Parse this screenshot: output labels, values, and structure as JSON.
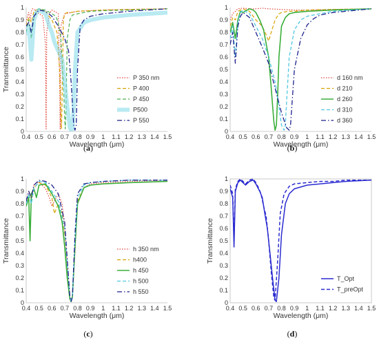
{
  "chart_data": [
    {
      "type": "line",
      "panel_label": "a",
      "xlabel": "Wavelength (μm)",
      "ylabel": "Transmittance",
      "xlim": [
        0.4,
        1.5
      ],
      "ylim": [
        0,
        1
      ],
      "xticks": [
        "0.4",
        "0.5",
        "0.6",
        "0.7",
        "0.8",
        "0.9",
        "1",
        "1.1",
        "1.2",
        "1.3",
        "1.4",
        "1.5"
      ],
      "yticks": [
        "0",
        "0.1",
        "0.2",
        "0.3",
        "0.4",
        "0.5",
        "0.6",
        "0.7",
        "0.8",
        "0.9",
        "1"
      ],
      "legend_position": "bottom-right",
      "series": [
        {
          "name": "P 350 nm",
          "color": "#e0443a",
          "style": "dotted",
          "width": 1.2,
          "x": [
            0.4,
            0.41,
            0.42,
            0.43,
            0.44,
            0.45,
            0.47,
            0.5,
            0.53,
            0.55,
            0.555,
            0.56,
            0.58,
            0.6,
            0.62,
            0.65,
            0.66,
            0.665,
            0.67,
            0.7,
            0.8,
            0.9,
            1.0,
            1.2,
            1.5
          ],
          "y": [
            0.88,
            0.93,
            0.96,
            0.9,
            0.97,
            0.99,
            0.98,
            0.95,
            0.93,
            0.7,
            0.02,
            0.8,
            0.95,
            0.98,
            0.97,
            0.95,
            0.4,
            0.02,
            0.85,
            0.95,
            0.97,
            0.975,
            0.98,
            0.985,
            0.99
          ]
        },
        {
          "name": "P 400",
          "color": "#d6a100",
          "style": "dashed",
          "width": 1.2,
          "x": [
            0.4,
            0.42,
            0.44,
            0.46,
            0.5,
            0.55,
            0.6,
            0.64,
            0.66,
            0.67,
            0.675,
            0.68,
            0.69,
            0.7,
            0.72,
            0.75,
            0.8,
            0.9,
            1.0,
            1.2,
            1.5
          ],
          "y": [
            0.85,
            0.92,
            0.88,
            0.97,
            0.99,
            0.97,
            0.9,
            0.8,
            0.5,
            0.15,
            0.02,
            0.3,
            0.9,
            0.95,
            0.96,
            0.96,
            0.97,
            0.975,
            0.98,
            0.985,
            0.99
          ]
        },
        {
          "name": "P 450",
          "color": "#4caf50",
          "style": "dashed",
          "width": 1.2,
          "x": [
            0.4,
            0.42,
            0.44,
            0.46,
            0.48,
            0.5,
            0.55,
            0.6,
            0.63,
            0.65,
            0.67,
            0.69,
            0.7,
            0.705,
            0.71,
            0.72,
            0.74,
            0.76,
            0.8,
            0.85,
            0.9,
            1.0,
            1.2,
            1.5
          ],
          "y": [
            0.8,
            0.9,
            0.75,
            0.92,
            0.97,
            0.99,
            0.98,
            0.95,
            0.93,
            0.88,
            0.75,
            0.4,
            0.1,
            0.02,
            0.2,
            0.75,
            0.9,
            0.94,
            0.95,
            0.96,
            0.97,
            0.975,
            0.98,
            0.99
          ]
        },
        {
          "name": "P500",
          "color": "#7fd8e8",
          "style": "band",
          "width": 6,
          "x": [
            0.4,
            0.42,
            0.44,
            0.46,
            0.48,
            0.5,
            0.55,
            0.58,
            0.6,
            0.62,
            0.65,
            0.68,
            0.7,
            0.72,
            0.74,
            0.75,
            0.76,
            0.77,
            0.78,
            0.8,
            0.85,
            0.9,
            1.0,
            1.2,
            1.5
          ],
          "y": [
            0.78,
            0.85,
            0.58,
            0.9,
            0.96,
            0.98,
            0.95,
            0.85,
            0.8,
            0.72,
            0.65,
            0.58,
            0.4,
            0.2,
            0.03,
            0.01,
            0.02,
            0.2,
            0.5,
            0.8,
            0.88,
            0.9,
            0.92,
            0.94,
            0.96
          ]
        },
        {
          "name": "P 550",
          "color": "#1b1f8a",
          "style": "dashdot",
          "width": 1.3,
          "x": [
            0.4,
            0.42,
            0.44,
            0.46,
            0.5,
            0.55,
            0.6,
            0.65,
            0.7,
            0.73,
            0.75,
            0.77,
            0.78,
            0.79,
            0.8,
            0.82,
            0.85,
            0.9,
            1.0,
            1.2,
            1.5
          ],
          "y": [
            0.85,
            0.88,
            0.8,
            0.93,
            0.98,
            0.97,
            0.93,
            0.85,
            0.75,
            0.65,
            0.4,
            0.05,
            0.01,
            0.05,
            0.5,
            0.85,
            0.9,
            0.93,
            0.95,
            0.97,
            0.99
          ]
        }
      ]
    },
    {
      "type": "line",
      "panel_label": "b",
      "xlabel": "Wavelength (μm)",
      "ylabel": "",
      "xlim": [
        0.4,
        1.5
      ],
      "ylim": [
        0,
        1
      ],
      "xticks": [
        "0.4",
        "0.5",
        "0.6",
        "0.7",
        "0.8",
        "0.9",
        "1",
        "1.1",
        "1.2",
        "1.3",
        "1.4",
        "1.5"
      ],
      "yticks": [
        "0",
        "0.1",
        "0.2",
        "0.3",
        "0.4",
        "0.5",
        "0.6",
        "0.7",
        "0.8",
        "0.9",
        "1"
      ],
      "legend_position": "bottom-right",
      "series": [
        {
          "name": "d 160 nm",
          "color": "#e0443a",
          "style": "dotted",
          "width": 1.2,
          "x": [
            0.4,
            0.42,
            0.44,
            0.46,
            0.5,
            0.55,
            0.6,
            0.65,
            0.7,
            0.8,
            0.9,
            1.0,
            1.2,
            1.5
          ],
          "y": [
            0.9,
            0.95,
            0.97,
            0.99,
            0.995,
            0.99,
            0.99,
            0.995,
            0.99,
            0.985,
            0.98,
            0.98,
            0.985,
            0.99
          ]
        },
        {
          "name": "d 210",
          "color": "#d6a100",
          "style": "dashed",
          "width": 1.2,
          "x": [
            0.4,
            0.42,
            0.44,
            0.46,
            0.5,
            0.55,
            0.6,
            0.65,
            0.68,
            0.7,
            0.72,
            0.75,
            0.78,
            0.8,
            0.85,
            0.9,
            1.0,
            1.2,
            1.5
          ],
          "y": [
            0.85,
            0.92,
            0.9,
            0.97,
            0.99,
            0.97,
            0.9,
            0.85,
            0.78,
            0.73,
            0.8,
            0.9,
            0.95,
            0.96,
            0.97,
            0.97,
            0.98,
            0.985,
            0.99
          ]
        },
        {
          "name": "d 260",
          "color": "#3aae3a",
          "style": "solid",
          "width": 1.6,
          "x": [
            0.4,
            0.42,
            0.44,
            0.46,
            0.48,
            0.5,
            0.55,
            0.58,
            0.6,
            0.63,
            0.66,
            0.7,
            0.72,
            0.74,
            0.75,
            0.76,
            0.77,
            0.78,
            0.8,
            0.83,
            0.86,
            0.9,
            1.0,
            1.2,
            1.5
          ],
          "y": [
            0.8,
            0.88,
            0.75,
            0.9,
            0.97,
            0.96,
            0.99,
            0.98,
            0.96,
            0.9,
            0.82,
            0.6,
            0.35,
            0.08,
            0.01,
            0.05,
            0.3,
            0.6,
            0.85,
            0.92,
            0.95,
            0.96,
            0.97,
            0.98,
            0.99
          ]
        },
        {
          "name": "d 310",
          "color": "#4fc6e0",
          "style": "dashed",
          "width": 1.3,
          "x": [
            0.4,
            0.42,
            0.44,
            0.46,
            0.48,
            0.5,
            0.55,
            0.6,
            0.65,
            0.7,
            0.75,
            0.78,
            0.8,
            0.82,
            0.83,
            0.84,
            0.86,
            0.9,
            0.95,
            1.0,
            1.1,
            1.2,
            1.5
          ],
          "y": [
            0.75,
            0.85,
            0.6,
            0.88,
            0.96,
            0.98,
            0.95,
            0.85,
            0.75,
            0.6,
            0.4,
            0.2,
            0.05,
            0.01,
            0.05,
            0.25,
            0.6,
            0.82,
            0.9,
            0.93,
            0.95,
            0.97,
            0.99
          ]
        },
        {
          "name": "d 360",
          "color": "#1b1f8a",
          "style": "dashdot",
          "width": 1.3,
          "x": [
            0.4,
            0.42,
            0.44,
            0.46,
            0.48,
            0.5,
            0.55,
            0.6,
            0.65,
            0.7,
            0.75,
            0.8,
            0.84,
            0.86,
            0.87,
            0.88,
            0.9,
            0.95,
            1.0,
            1.05,
            1.1,
            1.2,
            1.3,
            1.5
          ],
          "y": [
            0.7,
            0.8,
            0.55,
            0.85,
            0.93,
            0.96,
            0.92,
            0.8,
            0.68,
            0.55,
            0.35,
            0.15,
            0.03,
            0.01,
            0.05,
            0.2,
            0.5,
            0.75,
            0.86,
            0.91,
            0.94,
            0.96,
            0.97,
            0.99
          ]
        }
      ]
    },
    {
      "type": "line",
      "panel_label": "c",
      "xlabel": "Wavelength (μm)",
      "ylabel": "Transmittance",
      "xlim": [
        0.4,
        1.5
      ],
      "ylim": [
        0,
        1
      ],
      "xticks": [
        "0.4",
        "0.5",
        "0.6",
        "0.7",
        "0.8",
        "0.9",
        "1",
        "1.1",
        "1.2",
        "1.3",
        "1.4",
        "1.5"
      ],
      "yticks": [
        "0",
        "0.1",
        "0.2",
        "0.3",
        "0.4",
        "0.5",
        "0.6",
        "0.7",
        "0.8",
        "0.9",
        "1"
      ],
      "legend_position": "bottom-right",
      "series": [
        {
          "name": "h 350 nm",
          "color": "#e0443a",
          "style": "dotted",
          "width": 1.2,
          "x": [
            0.4,
            0.42,
            0.44,
            0.46,
            0.5,
            0.55,
            0.58,
            0.6,
            0.62,
            0.65,
            0.68,
            0.7,
            0.72,
            0.74,
            0.75,
            0.76,
            0.78,
            0.8,
            0.85,
            0.9,
            1.0,
            1.2,
            1.5
          ],
          "y": [
            0.8,
            0.9,
            0.85,
            0.95,
            0.98,
            0.92,
            0.85,
            0.78,
            0.82,
            0.88,
            0.8,
            0.6,
            0.3,
            0.05,
            0.01,
            0.05,
            0.4,
            0.8,
            0.93,
            0.96,
            0.97,
            0.98,
            0.99
          ]
        },
        {
          "name": "h400",
          "color": "#d6a100",
          "style": "dashed",
          "width": 1.2,
          "x": [
            0.4,
            0.42,
            0.44,
            0.46,
            0.5,
            0.55,
            0.6,
            0.62,
            0.65,
            0.68,
            0.7,
            0.72,
            0.74,
            0.75,
            0.76,
            0.78,
            0.8,
            0.85,
            0.9,
            1.0,
            1.2,
            1.5
          ],
          "y": [
            0.8,
            0.88,
            0.82,
            0.93,
            0.97,
            0.95,
            0.85,
            0.72,
            0.8,
            0.72,
            0.55,
            0.3,
            0.05,
            0.01,
            0.06,
            0.45,
            0.82,
            0.93,
            0.95,
            0.96,
            0.97,
            0.98
          ]
        },
        {
          "name": "h 450",
          "color": "#3aae3a",
          "style": "solid",
          "width": 1.6,
          "x": [
            0.4,
            0.42,
            0.43,
            0.44,
            0.46,
            0.48,
            0.5,
            0.55,
            0.6,
            0.65,
            0.68,
            0.7,
            0.72,
            0.74,
            0.75,
            0.76,
            0.78,
            0.8,
            0.85,
            0.9,
            1.0,
            1.2,
            1.5
          ],
          "y": [
            0.78,
            0.85,
            0.5,
            0.88,
            0.92,
            0.85,
            0.95,
            0.96,
            0.88,
            0.78,
            0.65,
            0.45,
            0.2,
            0.03,
            0.01,
            0.05,
            0.45,
            0.8,
            0.93,
            0.95,
            0.96,
            0.97,
            0.98
          ]
        },
        {
          "name": "h 500",
          "color": "#4fc6e0",
          "style": "dashed",
          "width": 1.3,
          "x": [
            0.4,
            0.42,
            0.44,
            0.46,
            0.5,
            0.55,
            0.6,
            0.65,
            0.7,
            0.72,
            0.74,
            0.75,
            0.76,
            0.78,
            0.8,
            0.85,
            0.9,
            1.0,
            1.2,
            1.5
          ],
          "y": [
            0.8,
            0.88,
            0.8,
            0.92,
            0.98,
            0.97,
            0.9,
            0.82,
            0.6,
            0.3,
            0.05,
            0.01,
            0.05,
            0.5,
            0.85,
            0.95,
            0.97,
            0.98,
            0.99,
            0.99
          ]
        },
        {
          "name": "h 550",
          "color": "#1b1f8a",
          "style": "dashdot",
          "width": 1.3,
          "x": [
            0.4,
            0.42,
            0.44,
            0.46,
            0.5,
            0.55,
            0.6,
            0.65,
            0.7,
            0.72,
            0.74,
            0.75,
            0.76,
            0.78,
            0.8,
            0.85,
            0.9,
            1.0,
            1.2,
            1.5
          ],
          "y": [
            0.82,
            0.9,
            0.85,
            0.95,
            0.99,
            0.98,
            0.95,
            0.88,
            0.65,
            0.35,
            0.05,
            0.01,
            0.05,
            0.55,
            0.88,
            0.96,
            0.97,
            0.98,
            0.99,
            0.99
          ]
        }
      ]
    },
    {
      "type": "line",
      "panel_label": "d",
      "xlabel": "Wavelength (μm)",
      "ylabel": "Transmittance",
      "xlim": [
        0.4,
        1.5
      ],
      "ylim": [
        0,
        1
      ],
      "xticks": [
        "0.4",
        "0.5",
        "0.6",
        "0.7",
        "0.8",
        "0.9",
        "1",
        "1.1",
        "1.2",
        "1.3",
        "1.4",
        "1.5"
      ],
      "yticks": [
        "0",
        "0.1",
        "0.2",
        "0.3",
        "0.4",
        "0.5",
        "0.6",
        "0.7",
        "0.8",
        "0.9",
        "1"
      ],
      "legend_position": "bottom-right",
      "series": [
        {
          "name": "T_Opt",
          "color": "#2a2ad0",
          "style": "solid",
          "width": 1.5,
          "x": [
            0.4,
            0.42,
            0.43,
            0.44,
            0.46,
            0.48,
            0.5,
            0.52,
            0.55,
            0.58,
            0.6,
            0.63,
            0.65,
            0.67,
            0.69,
            0.71,
            0.73,
            0.75,
            0.76,
            0.78,
            0.8,
            0.83,
            0.86,
            0.9,
            1.0,
            1.1,
            1.2,
            1.3,
            1.5
          ],
          "y": [
            0.92,
            0.85,
            0.45,
            0.9,
            0.97,
            0.99,
            0.97,
            0.95,
            0.98,
            0.99,
            0.96,
            0.9,
            0.85,
            0.72,
            0.6,
            0.4,
            0.2,
            0.02,
            0.01,
            0.2,
            0.55,
            0.8,
            0.88,
            0.92,
            0.95,
            0.96,
            0.97,
            0.98,
            0.99
          ]
        },
        {
          "name": "T_preOpt",
          "color": "#2a2ad0",
          "style": "dashed",
          "width": 1.5,
          "x": [
            0.4,
            0.42,
            0.43,
            0.44,
            0.46,
            0.48,
            0.5,
            0.52,
            0.55,
            0.58,
            0.6,
            0.62,
            0.64,
            0.66,
            0.68,
            0.7,
            0.72,
            0.74,
            0.75,
            0.77,
            0.79,
            0.82,
            0.86,
            0.9,
            1.0,
            1.1,
            1.2,
            1.3,
            1.5
          ],
          "y": [
            0.95,
            0.88,
            0.5,
            0.92,
            0.98,
            1.0,
            0.98,
            0.96,
            0.99,
            1.0,
            0.97,
            0.93,
            0.88,
            0.78,
            0.7,
            0.5,
            0.25,
            0.04,
            0.02,
            0.35,
            0.72,
            0.88,
            0.94,
            0.96,
            0.97,
            0.98,
            0.98,
            0.99,
            0.99
          ]
        }
      ]
    }
  ]
}
